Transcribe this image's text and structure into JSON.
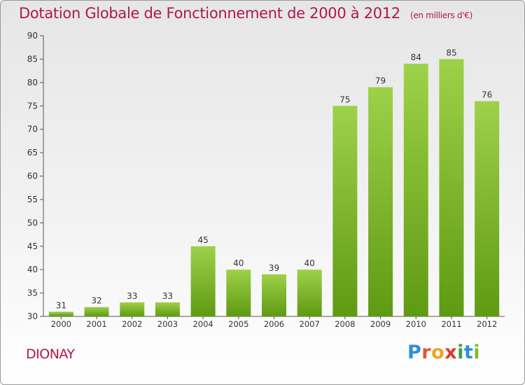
{
  "title": "Dotation Globale de Fonctionnement de 2000 à 2012",
  "subtitle": "(en milliers d'€)",
  "commune": "DIONAY",
  "logo": {
    "letters": [
      "P",
      "r",
      "o",
      "x",
      "i",
      "t",
      "i"
    ],
    "colors": [
      "#2e8fd8",
      "#e25a2a",
      "#f0a323",
      "#d93a2e",
      "#3aa23a",
      "#2e8fd8",
      "#7cbf2c"
    ]
  },
  "chart_data": {
    "type": "bar",
    "title": "Dotation Globale de Fonctionnement de 2000 à 2012",
    "subtitle": "(en milliers d'€)",
    "xlabel": "",
    "ylabel": "",
    "categories": [
      "2000",
      "2001",
      "2002",
      "2003",
      "2004",
      "2005",
      "2006",
      "2007",
      "2008",
      "2009",
      "2010",
      "2011",
      "2012"
    ],
    "values": [
      31,
      32,
      33,
      33,
      45,
      40,
      39,
      40,
      75,
      79,
      84,
      85,
      76
    ],
    "ylim": [
      30,
      90
    ],
    "yticks": [
      30,
      35,
      40,
      45,
      50,
      55,
      60,
      65,
      70,
      75,
      80,
      85,
      90
    ],
    "grid": false,
    "bar_color": "#7fbf2a",
    "bar_color_light": "#9ed14a",
    "bar_color_dark": "#5e9a12"
  }
}
